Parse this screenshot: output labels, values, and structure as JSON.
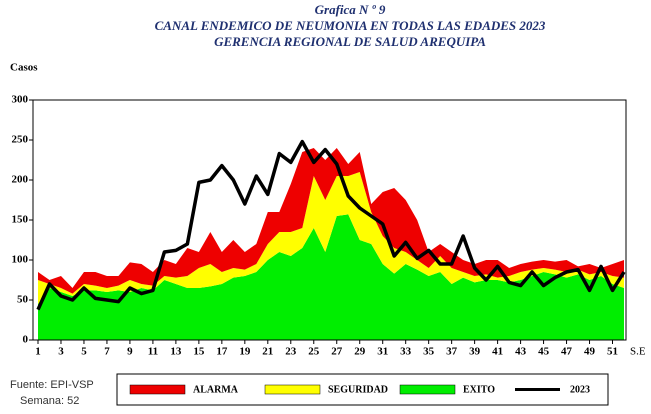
{
  "chart_data": {
    "type": "area",
    "title": [
      "Grafica N º 9",
      "CANAL ENDEMICO DE NEUMONIA EN TODAS LAS EDADES 2023",
      "GERENCIA REGIONAL DE SALUD AREQUIPA"
    ],
    "y_label": "Casos",
    "x_label": "S.E",
    "x": [
      1,
      2,
      3,
      4,
      5,
      6,
      7,
      8,
      9,
      10,
      11,
      12,
      13,
      14,
      15,
      16,
      17,
      18,
      19,
      20,
      21,
      22,
      23,
      24,
      25,
      26,
      27,
      28,
      29,
      30,
      31,
      32,
      33,
      34,
      35,
      36,
      37,
      38,
      39,
      40,
      41,
      42,
      43,
      44,
      45,
      46,
      47,
      48,
      49,
      50,
      51,
      52
    ],
    "xlim": [
      1,
      52
    ],
    "xticks": [
      1,
      3,
      5,
      7,
      9,
      11,
      13,
      15,
      17,
      19,
      21,
      23,
      25,
      27,
      29,
      31,
      33,
      35,
      37,
      39,
      41,
      43,
      45,
      47,
      49,
      51
    ],
    "ylim": [
      0,
      300
    ],
    "yticks": [
      0,
      50,
      100,
      150,
      200,
      250,
      300
    ],
    "grid": false,
    "series": [
      {
        "name": "EXITO",
        "color": "#00ee00",
        "stacked": true,
        "values": [
          45,
          65,
          60,
          55,
          62,
          62,
          60,
          62,
          60,
          65,
          62,
          75,
          70,
          65,
          65,
          67,
          70,
          78,
          80,
          85,
          100,
          110,
          105,
          115,
          140,
          110,
          155,
          157,
          125,
          120,
          95,
          83,
          95,
          88,
          80,
          85,
          70,
          78,
          72,
          75,
          75,
          72,
          75,
          80,
          85,
          82,
          78,
          82,
          75,
          80,
          70,
          65
        ]
      },
      {
        "name": "SEGURIDAD",
        "color": "#ffff00",
        "stacked": true,
        "values": [
          30,
          5,
          5,
          3,
          8,
          6,
          5,
          6,
          15,
          5,
          6,
          5,
          8,
          15,
          25,
          28,
          15,
          12,
          8,
          10,
          20,
          25,
          30,
          25,
          65,
          65,
          50,
          48,
          85,
          40,
          35,
          32,
          15,
          12,
          10,
          20,
          20,
          7,
          8,
          7,
          3,
          8,
          10,
          8,
          5,
          6,
          7,
          6,
          7,
          5,
          10,
          13
        ]
      },
      {
        "name": "ALARMA",
        "color": "#ee0000",
        "stacked": true,
        "values": [
          10,
          5,
          15,
          7,
          15,
          17,
          15,
          12,
          22,
          25,
          17,
          20,
          17,
          35,
          20,
          40,
          25,
          35,
          22,
          25,
          40,
          25,
          60,
          95,
          35,
          50,
          35,
          15,
          25,
          10,
          55,
          75,
          65,
          50,
          20,
          15,
          20,
          15,
          15,
          18,
          22,
          10,
          10,
          10,
          10,
          10,
          15,
          4,
          13,
          5,
          15,
          22
        ]
      },
      {
        "name": "2023",
        "color": "#000000",
        "stacked": false,
        "values": [
          38,
          70,
          55,
          50,
          65,
          52,
          50,
          48,
          65,
          58,
          62,
          110,
          112,
          120,
          197,
          200,
          218,
          200,
          170,
          205,
          182,
          233,
          222,
          248,
          222,
          238,
          220,
          180,
          165,
          155,
          145,
          105,
          122,
          102,
          112,
          95,
          95,
          130,
          90,
          75,
          92,
          72,
          68,
          85,
          68,
          78,
          85,
          88,
          62,
          92,
          62,
          85
        ]
      }
    ],
    "footer": [
      "Fuente: EPI-VSP",
      "Semana: 52"
    ]
  }
}
